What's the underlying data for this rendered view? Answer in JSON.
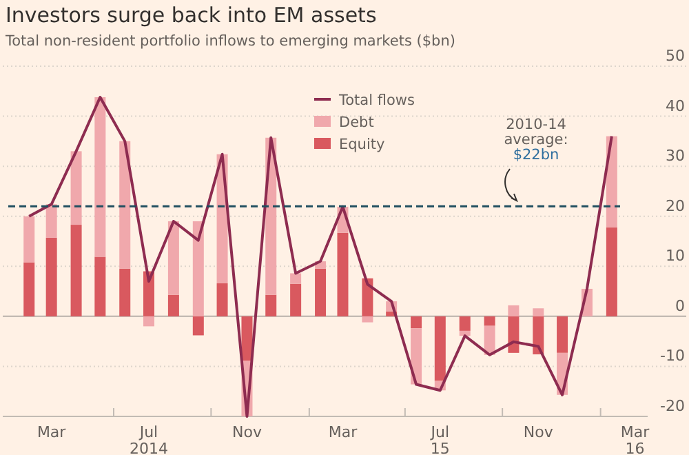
{
  "chart_data": {
    "type": "bar",
    "title": "Investors surge back into EM assets",
    "subtitle": "Total non-resident portfolio inflows to emerging markets ($bn)",
    "x": [
      "2014-02-15",
      "2014-03-15",
      "2014-04-15",
      "2014-05-15",
      "2014-06-15",
      "2014-07-15",
      "2014-08-15",
      "2014-09-15",
      "2014-10-15",
      "2014-11-15",
      "2014-12-15",
      "2015-01-15",
      "2015-02-15",
      "2015-03-15",
      "2015-04-15",
      "2015-05-15",
      "2015-06-15",
      "2015-07-15",
      "2015-08-15",
      "2015-09-15",
      "2015-10-15",
      "2015-11-15",
      "2015-12-15",
      "2016-01-15",
      "2016-02-15"
    ],
    "stacked": true,
    "series": [
      {
        "name": "Equity",
        "color": "#d9595f",
        "values": [
          10.8,
          15.7,
          18.3,
          11.9,
          9.5,
          9,
          4.3,
          -3.8,
          6.6,
          -8.9,
          4.3,
          6.5,
          9.5,
          16.7,
          7.6,
          1,
          -2.4,
          -12.9,
          -2.9,
          -1.9,
          -7.3,
          -7.6,
          -7.3,
          0,
          17.8
        ]
      },
      {
        "name": "Debt",
        "color": "#f0a8ac",
        "values": [
          9.2,
          6.7,
          14.7,
          31.9,
          25.5,
          -2,
          14.7,
          19,
          25.8,
          -11.1,
          31.4,
          2.1,
          1.5,
          5.2,
          -1.2,
          2,
          -11.2,
          -1.9,
          -1,
          -5.8,
          2.2,
          1.6,
          -8.4,
          5.5,
          18.2
        ]
      },
      {
        "name": "Total flows",
        "type": "line",
        "color": "#8e2c50",
        "values": [
          20,
          22.4,
          33,
          43.8,
          35,
          7,
          19,
          15.2,
          32.4,
          -20,
          35.7,
          8.6,
          11,
          21.9,
          6.4,
          3,
          -13.6,
          -14.8,
          -3.9,
          -7.7,
          -5.1,
          -6,
          -15.7,
          5.5,
          36
        ]
      }
    ],
    "xlim": [
      "2014-01-13",
      "2016-03-31"
    ],
    "xticks": [
      {
        "value": "2014-03-15",
        "label": "Mar"
      },
      {
        "value": "2014-06-01",
        "label": null
      },
      {
        "value": "2014-07-15",
        "label": "Jul\n2014"
      },
      {
        "value": "2014-10-01",
        "label": null
      },
      {
        "value": "2014-11-15",
        "label": "Nov"
      },
      {
        "value": "2015-02-01",
        "label": null
      },
      {
        "value": "2015-03-15",
        "label": "Mar"
      },
      {
        "value": "2015-06-01",
        "label": null
      },
      {
        "value": "2015-07-15",
        "label": "Jul\n15"
      },
      {
        "value": "2015-10-01",
        "label": null
      },
      {
        "value": "2015-11-15",
        "label": "Nov"
      },
      {
        "value": "2016-02-01",
        "label": null
      },
      {
        "value": "2016-03-15",
        "label": "Mar\n16"
      }
    ],
    "ylim": [
      -20,
      50
    ],
    "yticks": [
      -20,
      -10,
      0,
      10,
      20,
      30,
      40,
      50
    ],
    "grid": "y",
    "legend": "top right",
    "ref_lines": [
      {
        "axis": "y",
        "value": 22,
        "label": "2010-14\naverage:\n$22bn",
        "color": "#1f4e5f",
        "line_style": "dashed"
      }
    ]
  }
}
